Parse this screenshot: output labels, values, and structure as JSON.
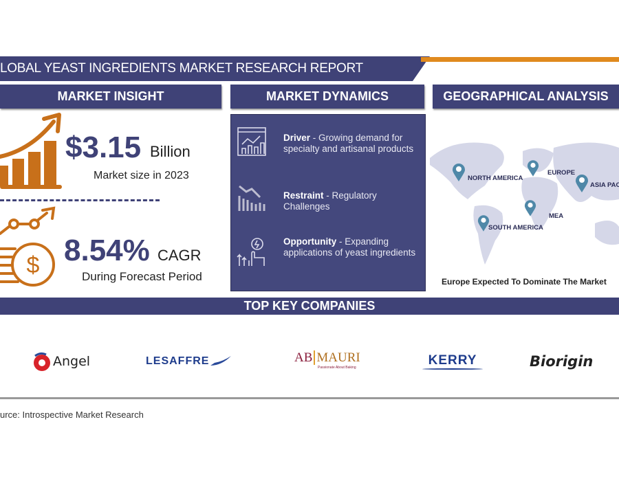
{
  "header": {
    "title": "LOBAL YEAST INGREDIENTS MARKET RESEARCH REPORT"
  },
  "sections": {
    "insight": "MARKET INSIGHT",
    "dynamics": "MARKET DYNAMICS",
    "geo": "GEOGRAPHICAL ANALYSIS"
  },
  "insight": {
    "market_value": "$3.15",
    "market_unit": "Billion",
    "market_caption": "Market size in 2023",
    "cagr_value": "8.54%",
    "cagr_unit": "CAGR",
    "cagr_caption": "During Forecast Period"
  },
  "dynamics": [
    {
      "label": "Driver",
      "text": " - Growing demand for specialty and artisanal products",
      "icon": "analytics-chart-icon"
    },
    {
      "label": "Restraint",
      "text": " - Regulatory Challenges",
      "icon": "declining-bars-icon"
    },
    {
      "label": "Opportunity",
      "text": " -  Expanding applications of yeast ingredients",
      "icon": "growth-hand-icon"
    }
  ],
  "geo": {
    "regions": [
      "NORTH AMERICA",
      "EUROPE",
      "ASIA PAC",
      "SOUTH AMERICA",
      "MEA"
    ],
    "caption": "Europe Expected To Dominate The Market"
  },
  "companies": {
    "title": "TOP KEY COMPANIES",
    "logos": [
      "Angel",
      "LESAFFRE",
      "AB",
      "MAURI",
      "Passionate About Baking",
      "KERRY",
      "Biorigin"
    ]
  },
  "source": "urce: Introspective Market Research",
  "colors": {
    "navy": "#3f4277",
    "orange": "#c8701a",
    "accent_line": "#e08a1e",
    "pin": "#4f88a8"
  }
}
